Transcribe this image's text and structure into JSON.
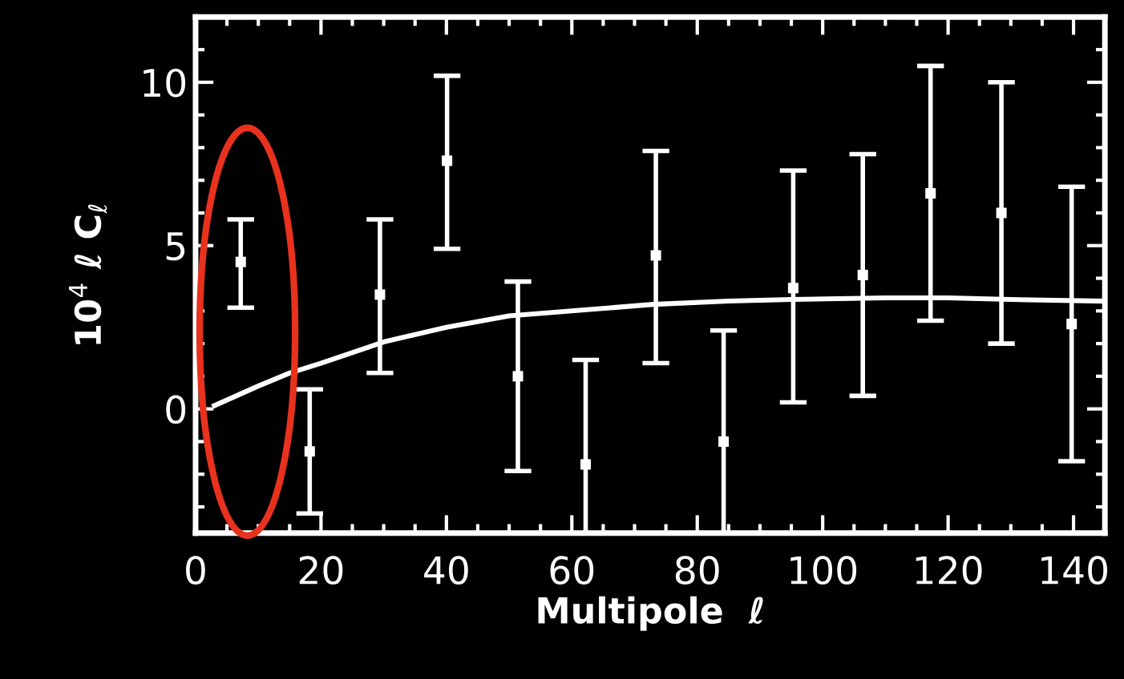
{
  "chart_data": {
    "type": "scatter",
    "xlabel": "Multipole  ℓ",
    "ylabel": "10$^{4}$ ℓ C$_{ℓ}$",
    "xlim": [
      0,
      145
    ],
    "ylim": [
      -3.8,
      12
    ],
    "xticks": [
      0,
      20,
      40,
      60,
      80,
      100,
      120,
      140
    ],
    "yticks": [
      0,
      5,
      10
    ],
    "grid": false,
    "legend": false,
    "series": [
      {
        "color": "#ffffff",
        "marker": "square",
        "x": [
          7.2,
          18.2,
          29.4,
          40.1,
          51.4,
          62.2,
          73.4,
          84.2,
          95.3,
          106.4,
          117.2,
          128.5,
          139.7
        ],
        "values": [
          4.5,
          -1.3,
          3.5,
          7.6,
          1.0,
          -1.7,
          4.7,
          -1.0,
          3.7,
          4.1,
          6.6,
          6.0,
          2.6
        ],
        "errors": [
          [
            3.1,
            5.8
          ],
          [
            -3.2,
            0.6
          ],
          [
            1.1,
            5.8
          ],
          [
            4.9,
            10.2
          ],
          [
            -1.9,
            3.9
          ],
          [
            -3.8,
            1.5
          ],
          [
            1.4,
            7.9
          ],
          [
            -3.8,
            2.4
          ],
          [
            0.2,
            7.3
          ],
          [
            0.4,
            7.8
          ],
          [
            2.7,
            10.5
          ],
          [
            2.0,
            10.0
          ],
          [
            -1.6,
            6.8
          ]
        ]
      },
      {
        "type": "line",
        "color": "#ffffff",
        "x": [
          3,
          10,
          15,
          20,
          30,
          40,
          50,
          60,
          73,
          85,
          95,
          110,
          120,
          130,
          145
        ],
        "values": [
          0.1,
          0.7,
          1.1,
          1.4,
          2.05,
          2.5,
          2.85,
          3.0,
          3.2,
          3.3,
          3.35,
          3.4,
          3.4,
          3.35,
          3.3
        ]
      }
    ]
  }
}
